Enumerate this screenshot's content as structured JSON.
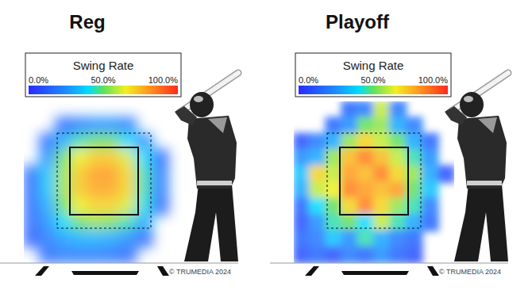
{
  "chart_data": [
    {
      "type": "heatmap",
      "title": "Reg",
      "colorbar": {
        "title": "Swing Rate",
        "range": [
          0,
          100
        ],
        "ticks": [
          {
            "value": 0,
            "label": "0.0%"
          },
          {
            "value": 50,
            "label": "50.0%"
          },
          {
            "value": 100,
            "label": "100.0%"
          }
        ]
      },
      "cells": [
        [
          null,
          null,
          null,
          null,
          null,
          null,
          null,
          null,
          null,
          null
        ],
        [
          null,
          null,
          15,
          20,
          25,
          25,
          20,
          null,
          null,
          null
        ],
        [
          null,
          15,
          30,
          45,
          50,
          50,
          40,
          25,
          null,
          null
        ],
        [
          null,
          25,
          50,
          65,
          72,
          72,
          62,
          40,
          15,
          null
        ],
        [
          15,
          35,
          55,
          72,
          80,
          80,
          70,
          45,
          20,
          null
        ],
        [
          15,
          35,
          55,
          72,
          78,
          78,
          70,
          45,
          20,
          null
        ],
        [
          15,
          30,
          50,
          65,
          70,
          70,
          62,
          42,
          15,
          null
        ],
        [
          15,
          25,
          40,
          50,
          55,
          52,
          45,
          30,
          null,
          null
        ],
        [
          12,
          20,
          28,
          32,
          32,
          30,
          25,
          15,
          null,
          null
        ],
        [
          null,
          15,
          20,
          20,
          20,
          18,
          15,
          null,
          null,
          null
        ]
      ],
      "annotations": [
        "© TRUMEDIA 2024"
      ]
    },
    {
      "type": "heatmap",
      "title": "Playoff",
      "colorbar": {
        "title": "Swing Rate",
        "range": [
          0,
          100
        ],
        "ticks": [
          {
            "value": 0,
            "label": "0.0%"
          },
          {
            "value": 50,
            "label": "50.0%"
          },
          {
            "value": 100,
            "label": "100.0%"
          }
        ]
      },
      "cells": [
        [
          null,
          null,
          null,
          15,
          20,
          60,
          20,
          null,
          null,
          null
        ],
        [
          null,
          null,
          15,
          25,
          50,
          55,
          30,
          20,
          null,
          null
        ],
        [
          10,
          20,
          30,
          55,
          70,
          60,
          50,
          30,
          15,
          null
        ],
        [
          25,
          30,
          55,
          75,
          85,
          75,
          60,
          45,
          25,
          null
        ],
        [
          35,
          70,
          60,
          80,
          75,
          85,
          70,
          55,
          30,
          10
        ],
        [
          30,
          60,
          65,
          85,
          80,
          75,
          80,
          50,
          35,
          null
        ],
        [
          15,
          40,
          50,
          70,
          85,
          70,
          55,
          45,
          20,
          null
        ],
        [
          10,
          25,
          45,
          50,
          40,
          60,
          45,
          30,
          15,
          null
        ],
        [
          15,
          20,
          35,
          25,
          45,
          30,
          20,
          15,
          null,
          null
        ],
        [
          10,
          15,
          10,
          20,
          15,
          25,
          15,
          10,
          null,
          null
        ]
      ],
      "annotations": [
        "© TRUMEDIA 2024"
      ]
    }
  ]
}
